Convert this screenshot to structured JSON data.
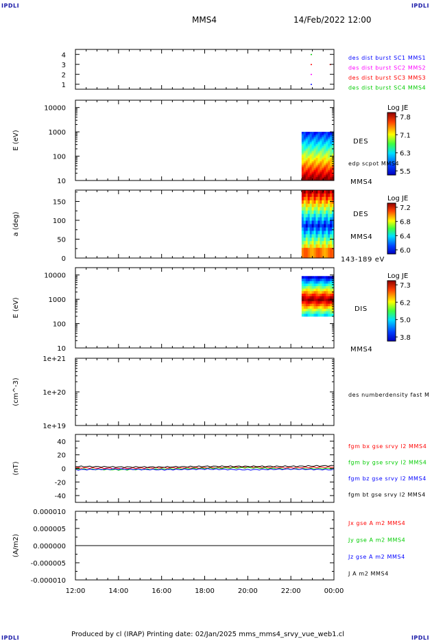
{
  "header": {
    "corner_tl": "IPDLI",
    "corner_tr": "IPDLI",
    "corner_bl": "IPDLI",
    "corner_br": "IPDLI",
    "title": "MMS4",
    "date": "14/Feb/2022 12:00"
  },
  "footer": {
    "text": "Produced by cl (IRAP)   Printing date: 02/Jan/2025   mms_mms4_srvy_vue_web1.cl"
  },
  "colors": {
    "blue": "#0000ff",
    "magenta": "#ff00ff",
    "red": "#ff0000",
    "green": "#00cc00",
    "black": "#000000",
    "corner": "#1a1aa8"
  },
  "chart_data": [
    {
      "type": "scatter",
      "panel": "availability",
      "x_range": [
        "12:00",
        "00:00"
      ],
      "ylim": [
        0.5,
        4.5
      ],
      "ytick_labels": [
        "4",
        "3",
        "2",
        "1"
      ],
      "series": [
        {
          "name": "des dist burst SC1 MMS1",
          "color": "#0000ff",
          "y": 1,
          "times": [
            "22:55"
          ]
        },
        {
          "name": "des dist burst SC2 MMS2",
          "color": "#ff00ff",
          "y": 2,
          "times": [
            "22:55"
          ]
        },
        {
          "name": "des dist burst SC3 MMS3",
          "color": "#ff0000",
          "y": 3,
          "times": [
            "22:55",
            "23:48"
          ]
        },
        {
          "name": "des dist burst SC4 MMS4",
          "color": "#00cc00",
          "y": 4,
          "times": [
            "22:55"
          ]
        }
      ]
    },
    {
      "type": "heatmap",
      "panel": "des-energy",
      "ylabel": "E (eV)",
      "yscale": "log",
      "ylim": [
        10,
        20000
      ],
      "ytick_labels": [
        "10000",
        "1000",
        "100",
        "10"
      ],
      "data_time_range": [
        "22:30",
        "00:00"
      ],
      "data_y_range": [
        10,
        1000
      ],
      "colorbar": {
        "label": "Log JE",
        "ticks": [
          "7.8",
          "7.1",
          "6.3",
          "5.5"
        ]
      },
      "labels": [
        "DES",
        "edp scpot MMS4",
        "MMS4"
      ]
    },
    {
      "type": "heatmap",
      "panel": "des-pitch-angle",
      "ylabel": "a (deg)",
      "ylim": [
        0,
        180
      ],
      "ytick_labels": [
        "150",
        "100",
        "50",
        "0"
      ],
      "data_time_range": [
        "22:30",
        "00:00"
      ],
      "colorbar": {
        "label": "Log JE",
        "ticks": [
          "7.2",
          "6.8",
          "6.4",
          "6.0"
        ]
      },
      "labels": [
        "DES",
        "MMS4",
        "143-189 eV"
      ]
    },
    {
      "type": "heatmap",
      "panel": "dis-energy",
      "ylabel": "E (eV)",
      "yscale": "log",
      "ylim": [
        10,
        20000
      ],
      "ytick_labels": [
        "10000",
        "1000",
        "100",
        "10"
      ],
      "data_time_range": [
        "22:30",
        "00:00"
      ],
      "data_y_range": [
        200,
        9000
      ],
      "colorbar": {
        "label": "Log JE",
        "ticks": [
          "7.3",
          "6.2",
          "5.0",
          "3.8"
        ]
      },
      "labels": [
        "DIS",
        "MMS4"
      ]
    },
    {
      "type": "line",
      "panel": "number-density",
      "ylabel": "(cm^-3)",
      "yscale": "log",
      "ytick_labels": [
        "1e+21",
        "1e+20",
        "1e+19"
      ],
      "series": [
        {
          "name": "des numberdensity fast M",
          "color": "#000000",
          "values": []
        }
      ]
    },
    {
      "type": "line",
      "panel": "magnetic-field",
      "ylabel": "(nT)",
      "ylim": [
        -50,
        50
      ],
      "ytick_labels": [
        "40",
        "20",
        "0",
        "-20",
        "-40"
      ],
      "x": [
        "12:00",
        "14:00",
        "16:00",
        "18:00",
        "20:00",
        "22:00",
        "00:00"
      ],
      "series": [
        {
          "name": "fgm bx gse srvy l2 MMS4",
          "color": "#ff0000",
          "values": [
            1,
            0,
            1,
            1,
            2,
            1,
            2
          ]
        },
        {
          "name": "fgm by gse srvy l2 MMS4",
          "color": "#00cc00",
          "values": [
            -1,
            -2,
            -1,
            0,
            1,
            -1,
            0
          ]
        },
        {
          "name": "fgm bz gse srvy l2 MMS4",
          "color": "#0000ff",
          "values": [
            -2,
            -1,
            -2,
            -1,
            -2,
            -1,
            -2
          ]
        },
        {
          "name": "fgm bt gse srvy l2 MMS4",
          "color": "#000000",
          "values": [
            3,
            2,
            2,
            3,
            3,
            3,
            4
          ]
        }
      ]
    },
    {
      "type": "line",
      "panel": "current-density",
      "ylabel": "(A/m2)",
      "ylim": [
        -1e-05,
        1e-05
      ],
      "ytick_labels": [
        "0.000010",
        "0.000005",
        "0.000000",
        "-0.000005",
        "-0.000010"
      ],
      "x_ticks": [
        "12:00",
        "14:00",
        "16:00",
        "18:00",
        "20:00",
        "22:00",
        "00:00"
      ],
      "series": [
        {
          "name": "Jx gse A m2 MMS4",
          "color": "#ff0000"
        },
        {
          "name": "Jy gse A m2 MMS4",
          "color": "#00cc00"
        },
        {
          "name": "Jz gse A m2 MMS4",
          "color": "#0000ff"
        },
        {
          "name": "J A m2 MMS4",
          "color": "#000000"
        }
      ],
      "values": [
        0,
        0,
        0,
        0,
        0,
        0,
        0
      ]
    }
  ]
}
